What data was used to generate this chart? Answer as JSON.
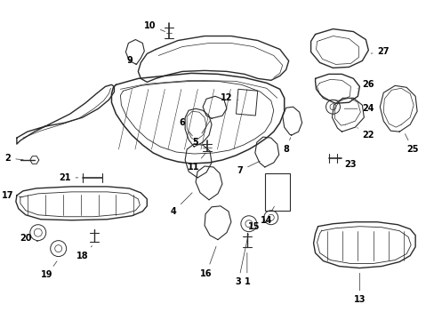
{
  "background_color": "#ffffff",
  "line_color": "#2a2a2a",
  "text_color": "#000000",
  "label_fs": 7,
  "lw_main": 1.0,
  "lw_thin": 0.6,
  "lw_leader": 0.5
}
